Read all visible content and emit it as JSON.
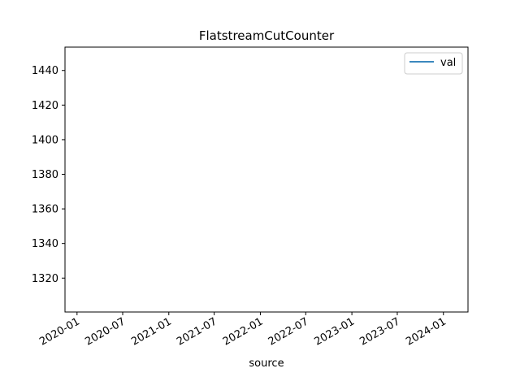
{
  "chart_data": {
    "type": "line",
    "title": "FlatstreamCutCounter",
    "xlabel": "source",
    "ylabel": "",
    "x_axis_type": "date",
    "xlim": [
      "2019-11-14",
      "2024-04-08"
    ],
    "ylim": [
      1300.4,
      1453.5
    ],
    "y_ticks": [
      1320,
      1340,
      1360,
      1380,
      1400,
      1420,
      1440
    ],
    "x_ticks": [
      "2020-01",
      "2020-07",
      "2021-01",
      "2021-07",
      "2022-01",
      "2022-07",
      "2023-01",
      "2023-07",
      "2024-01"
    ],
    "legend_position": "top-right",
    "grid": false,
    "series": [
      {
        "name": "val",
        "color": "#1f77b4",
        "x": [],
        "y": []
      }
    ]
  }
}
